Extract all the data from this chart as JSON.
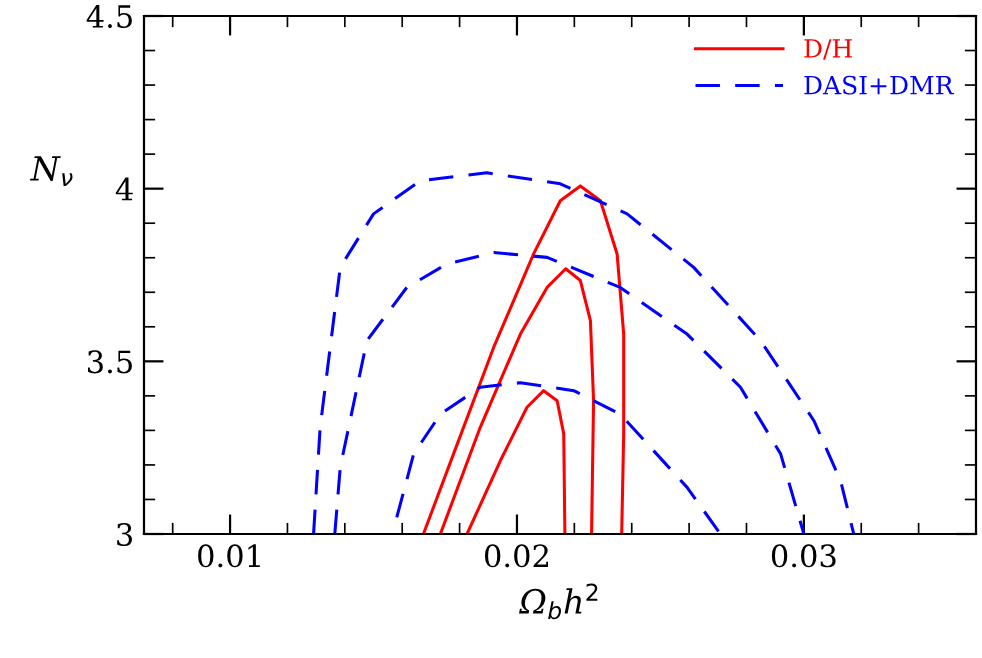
{
  "chart_data": {
    "type": "line",
    "xlabel": "Ω$_{b}$h$^{2}$",
    "ylabel": "N$_{ν}$",
    "xlim": [
      0.007,
      0.036
    ],
    "ylim": [
      3,
      4.5
    ],
    "xticks": [
      0.01,
      0.02,
      0.03
    ],
    "yticks": [
      3,
      3.5,
      4,
      4.5
    ],
    "legend": "top right",
    "grid": false,
    "series": [
      {
        "name": "D/H",
        "color": "#ff0000",
        "line_style": "solid",
        "x": [
          0.01674,
          0.01779,
          0.01919,
          0.02058,
          0.02151,
          0.02221,
          0.02291,
          0.02349,
          0.02372,
          0.02372,
          0.02365
        ],
        "values": [
          3.0,
          3.232,
          3.541,
          3.811,
          3.965,
          4.008,
          3.965,
          3.811,
          3.579,
          3.29,
          3.0
        ]
      },
      {
        "color": "#ff0000",
        "line_style": "solid",
        "x": [
          0.01733,
          0.01872,
          0.02012,
          0.02105,
          0.0217,
          0.02221,
          0.02256,
          0.02267,
          0.0226
        ],
        "values": [
          3.0,
          3.309,
          3.579,
          3.714,
          3.768,
          3.734,
          3.618,
          3.386,
          3.0
        ]
      },
      {
        "color": "#ff0000",
        "line_style": "solid",
        "x": [
          0.01826,
          0.01942,
          0.02035,
          0.02093,
          0.0214,
          0.02163,
          0.02167
        ],
        "values": [
          3.0,
          3.212,
          3.367,
          3.415,
          3.386,
          3.29,
          3.0
        ]
      },
      {
        "name": "DASI+DMR",
        "color": "#0000ff",
        "line_style": "dashed",
        "x": [
          0.01291,
          0.01314,
          0.01384,
          0.015,
          0.01663,
          0.01895,
          0.02151,
          0.02384,
          0.02616,
          0.02849,
          0.03035,
          0.03128,
          0.03174
        ],
        "values": [
          3.0,
          3.309,
          3.772,
          3.927,
          4.023,
          4.046,
          4.014,
          3.927,
          3.772,
          3.56,
          3.328,
          3.154,
          3.0
        ]
      },
      {
        "color": "#0000ff",
        "line_style": "dashed",
        "x": [
          0.01365,
          0.01384,
          0.01477,
          0.01616,
          0.01756,
          0.01919,
          0.02105,
          0.0236,
          0.02593,
          0.02779,
          0.02919,
          0.03
        ],
        "values": [
          3.0,
          3.193,
          3.56,
          3.714,
          3.782,
          3.815,
          3.801,
          3.714,
          3.579,
          3.425,
          3.232,
          3.0
        ]
      },
      {
        "color": "#0000ff",
        "line_style": "dashed",
        "x": [
          0.01581,
          0.0164,
          0.01733,
          0.01872,
          0.02012,
          0.02198,
          0.0236,
          0.02593,
          0.02709
        ],
        "values": [
          3.048,
          3.232,
          3.347,
          3.425,
          3.438,
          3.415,
          3.347,
          3.135,
          3.0
        ]
      }
    ]
  }
}
